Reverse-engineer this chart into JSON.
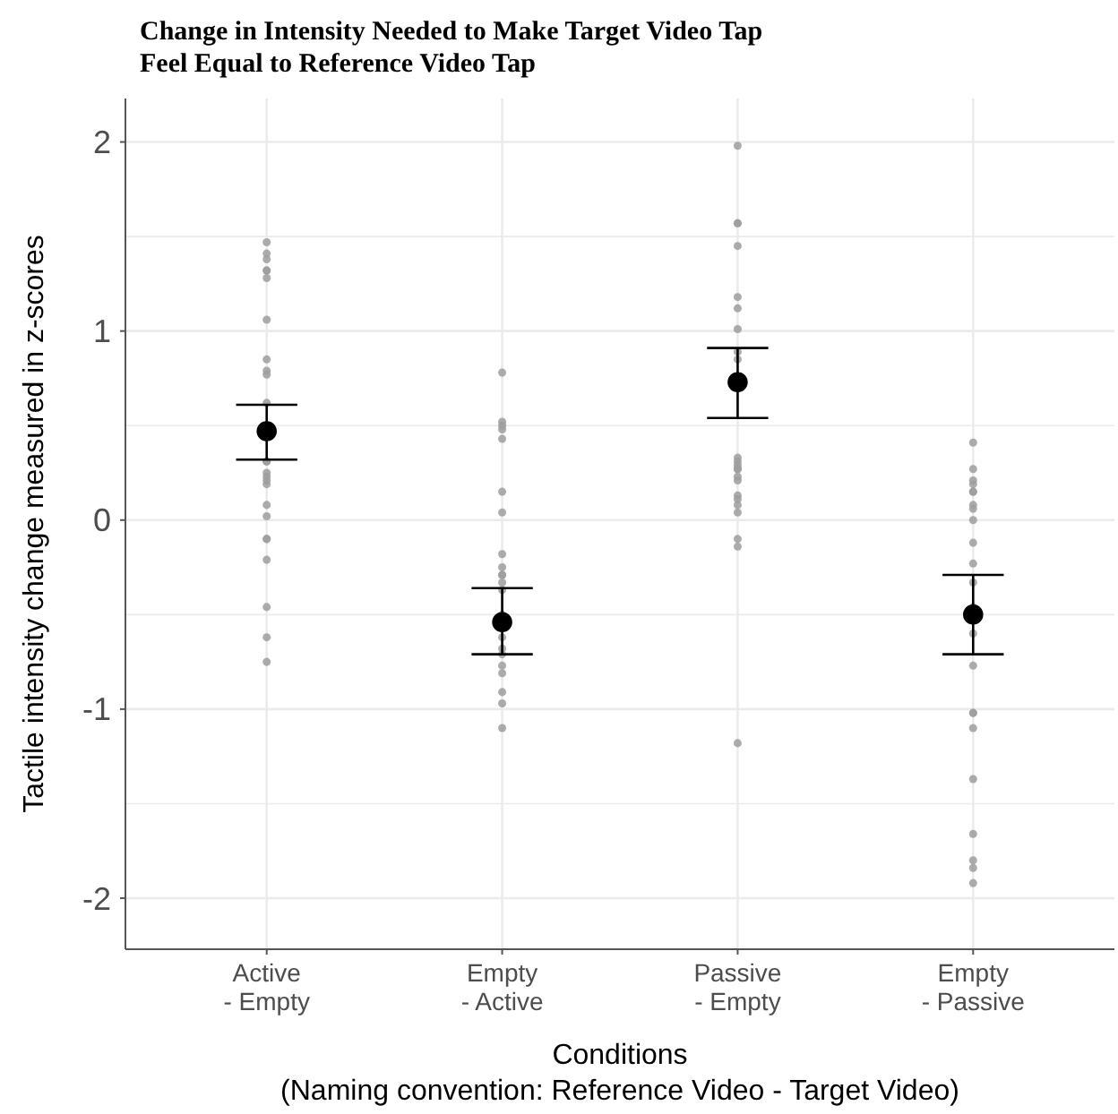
{
  "chart_data": {
    "type": "scatter",
    "title": "Change in Intensity Needed to Make Target Video Tap\nFeel Equal to Reference Video Tap",
    "xlabel": "Conditions\n(Naming convention: Reference Video - Target Video)",
    "ylabel": "Tactile intensity change measured in z-scores",
    "categories": [
      "Active\n- Empty",
      "Empty\n- Active",
      "Passive\n- Empty",
      "Empty\n- Passive"
    ],
    "ylim": [
      -2.27,
      2.23
    ],
    "yticks": [
      -2,
      {
        "value": -1.5,
        "label": null
      },
      -1,
      {
        "value": -0.5,
        "label": null
      },
      0,
      {
        "value": 0.5,
        "label": null
      },
      1,
      {
        "value": 1.5,
        "label": null
      },
      2
    ],
    "grid": true,
    "marker": "circle",
    "series": [
      {
        "color": "#9e9e9e",
        "x": [
          "Active\n- Empty",
          "Active\n- Empty",
          "Active\n- Empty",
          "Active\n- Empty",
          "Active\n- Empty",
          "Active\n- Empty",
          "Active\n- Empty",
          "Active\n- Empty",
          "Active\n- Empty",
          "Active\n- Empty",
          "Active\n- Empty",
          "Active\n- Empty",
          "Active\n- Empty",
          "Active\n- Empty",
          "Active\n- Empty",
          "Active\n- Empty",
          "Active\n- Empty",
          "Active\n- Empty",
          "Active\n- Empty",
          "Active\n- Empty",
          "Active\n- Empty",
          "Active\n- Empty",
          "Active\n- Empty",
          "Active\n- Empty",
          "Active\n- Empty",
          "Empty\n- Active",
          "Empty\n- Active",
          "Empty\n- Active",
          "Empty\n- Active",
          "Empty\n- Active",
          "Empty\n- Active",
          "Empty\n- Active",
          "Empty\n- Active",
          "Empty\n- Active",
          "Empty\n- Active",
          "Empty\n- Active",
          "Empty\n- Active",
          "Empty\n- Active",
          "Empty\n- Active",
          "Empty\n- Active",
          "Empty\n- Active",
          "Empty\n- Active",
          "Empty\n- Active",
          "Empty\n- Active",
          "Empty\n- Active",
          "Empty\n- Active",
          "Empty\n- Active",
          "Passive\n- Empty",
          "Passive\n- Empty",
          "Passive\n- Empty",
          "Passive\n- Empty",
          "Passive\n- Empty",
          "Passive\n- Empty",
          "Passive\n- Empty",
          "Passive\n- Empty",
          "Passive\n- Empty",
          "Passive\n- Empty",
          "Passive\n- Empty",
          "Passive\n- Empty",
          "Passive\n- Empty",
          "Passive\n- Empty",
          "Passive\n- Empty",
          "Passive\n- Empty",
          "Passive\n- Empty",
          "Passive\n- Empty",
          "Passive\n- Empty",
          "Passive\n- Empty",
          "Passive\n- Empty",
          "Passive\n- Empty",
          "Passive\n- Empty",
          "Empty\n- Passive",
          "Empty\n- Passive",
          "Empty\n- Passive",
          "Empty\n- Passive",
          "Empty\n- Passive",
          "Empty\n- Passive",
          "Empty\n- Passive",
          "Empty\n- Passive",
          "Empty\n- Passive",
          "Empty\n- Passive",
          "Empty\n- Passive",
          "Empty\n- Passive",
          "Empty\n- Passive",
          "Empty\n- Passive",
          "Empty\n- Passive",
          "Empty\n- Passive",
          "Empty\n- Passive",
          "Empty\n- Passive",
          "Empty\n- Passive",
          "Empty\n- Passive",
          "Empty\n- Passive",
          "Empty\n- Passive",
          "Empty\n- Passive"
        ],
        "values": [
          1.47,
          1.41,
          1.38,
          1.32,
          1.32,
          1.28,
          1.06,
          0.85,
          0.79,
          0.77,
          0.62,
          0.31,
          0.31,
          0.23,
          0.25,
          0.19,
          0.21,
          0.08,
          0.02,
          -0.1,
          -0.1,
          -0.21,
          -0.46,
          -0.62,
          -0.75,
          0.78,
          0.52,
          0.5,
          0.48,
          0.43,
          0.15,
          0.04,
          -0.18,
          -0.25,
          -0.29,
          -0.29,
          -0.33,
          -0.37,
          -0.5,
          -0.62,
          -0.68,
          -0.71,
          -0.77,
          -0.81,
          -0.91,
          -0.97,
          -1.1,
          1.98,
          1.57,
          1.57,
          1.45,
          1.18,
          1.12,
          1.01,
          0.89,
          0.85,
          0.33,
          0.31,
          0.29,
          0.27,
          0.27,
          0.23,
          0.21,
          0.13,
          0.11,
          0.08,
          0.04,
          -0.14,
          -0.1,
          -1.18,
          0.41,
          0.27,
          0.19,
          0.21,
          0.15,
          0.15,
          0.08,
          0.06,
          0.0,
          -0.12,
          -0.23,
          -0.33,
          -0.46,
          -0.6,
          -0.77,
          -1.02,
          -1.02,
          -1.1,
          -1.37,
          -1.66,
          -1.8,
          -1.84,
          -1.92
        ]
      },
      {
        "color": "#000000",
        "x": [
          "Active\n- Empty",
          "Empty\n- Active",
          "Passive\n- Empty",
          "Empty\n- Passive"
        ],
        "values": [
          0.47,
          -0.54,
          0.73,
          -0.5
        ],
        "errors": [
          [
            0.32,
            0.61
          ],
          [
            -0.71,
            -0.36
          ],
          [
            0.54,
            0.91
          ],
          [
            -0.71,
            -0.29
          ]
        ]
      }
    ]
  }
}
